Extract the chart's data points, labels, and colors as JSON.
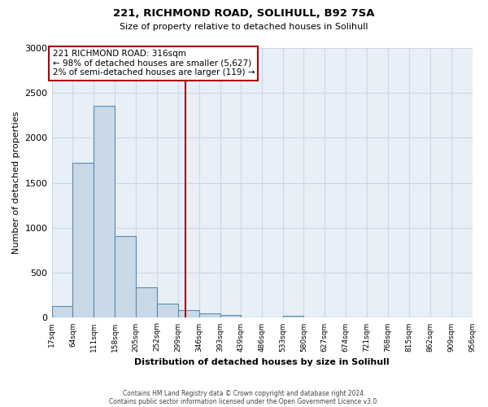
{
  "title": "221, RICHMOND ROAD, SOLIHULL, B92 7SA",
  "subtitle": "Size of property relative to detached houses in Solihull",
  "xlabel": "Distribution of detached houses by size in Solihull",
  "ylabel": "Number of detached properties",
  "bar_edges": [
    17,
    64,
    111,
    158,
    205,
    252,
    299,
    346,
    393,
    439,
    486,
    533,
    580,
    627,
    674,
    721,
    768,
    815,
    862,
    909,
    956
  ],
  "bar_heights": [
    130,
    1720,
    2360,
    910,
    340,
    160,
    85,
    50,
    30,
    0,
    0,
    25,
    0,
    0,
    0,
    0,
    0,
    0,
    0,
    0
  ],
  "bar_color": "#c9d9e8",
  "bar_edgecolor": "#5a8ab0",
  "vline_x": 316,
  "vline_color": "#aa0000",
  "annotation_title": "221 RICHMOND ROAD: 316sqm",
  "annotation_line1": "← 98% of detached houses are smaller (5,627)",
  "annotation_line2": "2% of semi-detached houses are larger (119) →",
  "ylim": [
    0,
    3000
  ],
  "yticks": [
    0,
    500,
    1000,
    1500,
    2000,
    2500,
    3000
  ],
  "footnote1": "Contains HM Land Registry data © Crown copyright and database right 2024.",
  "footnote2": "Contains public sector information licensed under the Open Government Licence v3.0.",
  "bg_color": "#ffffff",
  "grid_color": "#c8d8e8"
}
